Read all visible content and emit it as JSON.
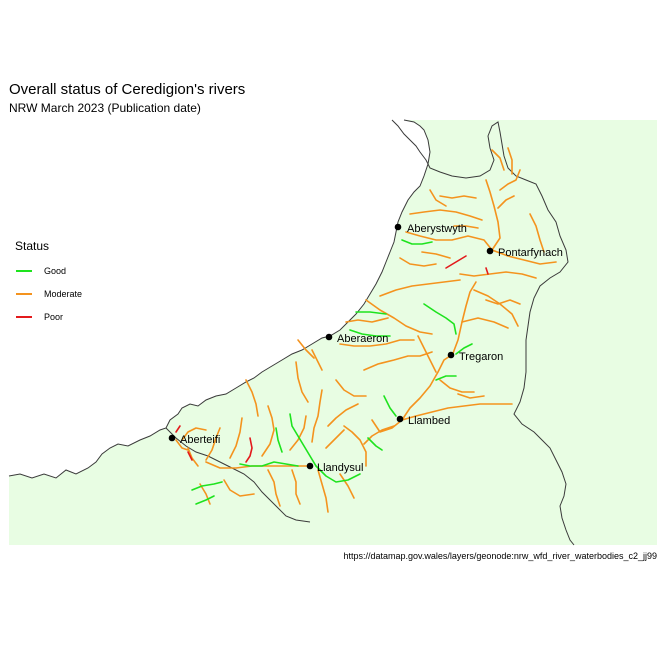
{
  "title": "Overall status of Ceredigion's rivers",
  "subtitle": "NRW March 2023 (Publication date)",
  "caption": "https://datamap.gov.wales/layers/geonode:nrw_wfd_river_waterbodies_c2_jj99",
  "colors": {
    "land": "#e8fde3",
    "boundary": "#3a3a3a",
    "good": "#1ee31e",
    "moderate": "#f4931e",
    "poor": "#e31a1c"
  },
  "legend": {
    "title": "Status",
    "items": [
      {
        "label": "Good",
        "status": "good"
      },
      {
        "label": "Moderate",
        "status": "moderate"
      },
      {
        "label": "Poor",
        "status": "poor"
      }
    ]
  },
  "towns": [
    {
      "name": "Aberystwyth"
    },
    {
      "name": "Pontarfynach"
    },
    {
      "name": "Aberaeron"
    },
    {
      "name": "Tregaron"
    },
    {
      "name": "Llambed"
    },
    {
      "name": "Aberteifi"
    },
    {
      "name": "Llandysul"
    }
  ]
}
